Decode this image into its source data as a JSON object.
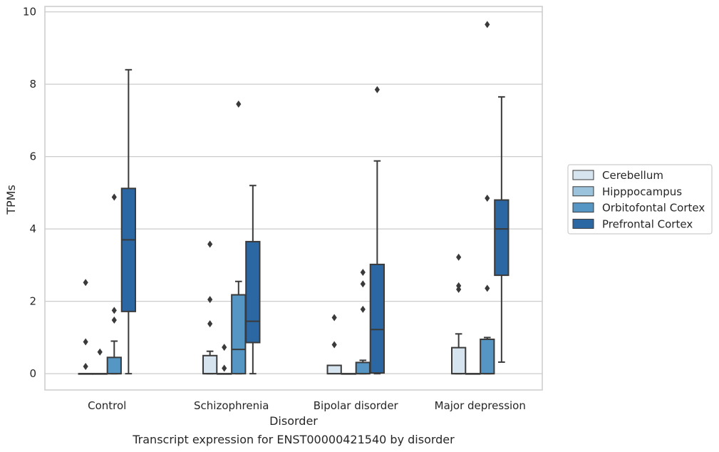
{
  "chart_data": {
    "type": "box",
    "caption": "Transcript expression for ENST00000421540 by disorder",
    "xlabel": "Disorder",
    "ylabel": "TPMs",
    "ylim": [
      -0.45,
      10.15
    ],
    "yticks": [
      0,
      2,
      4,
      6,
      8,
      10
    ],
    "grid": "horizontal",
    "legend_position": "right",
    "categories": [
      "Control",
      "Schizophrenia",
      "Bipolar disorder",
      "Major depression"
    ],
    "series": [
      {
        "name": "Cerebellum",
        "color": "#d6e4f0",
        "boxes": [
          {
            "q1": 0,
            "median": 0,
            "q3": 0,
            "whisker_low": 0,
            "whisker_high": 0,
            "outliers": [
              0.2,
              0.88,
              2.52
            ]
          },
          {
            "q1": 0,
            "median": 0,
            "q3": 0.5,
            "whisker_low": 0,
            "whisker_high": 0.62,
            "outliers": [
              1.38,
              2.05,
              3.58
            ]
          },
          {
            "q1": 0,
            "median": 0,
            "q3": 0.23,
            "whisker_low": 0,
            "whisker_high": 0.23,
            "outliers": [
              0.8,
              1.55
            ]
          },
          {
            "q1": 0,
            "median": 0,
            "q3": 0.72,
            "whisker_low": 0,
            "whisker_high": 1.1,
            "outliers": [
              2.33,
              2.43,
              3.22
            ]
          }
        ]
      },
      {
        "name": "Hipppocampus",
        "color": "#9cc3dc",
        "boxes": [
          {
            "q1": 0,
            "median": 0,
            "q3": 0,
            "whisker_low": 0,
            "whisker_high": 0,
            "outliers": [
              0.6
            ]
          },
          {
            "q1": 0,
            "median": 0,
            "q3": 0,
            "whisker_low": 0,
            "whisker_high": 0,
            "outliers": [
              0.15,
              0.73
            ]
          },
          {
            "q1": 0,
            "median": 0,
            "q3": 0,
            "whisker_low": 0,
            "whisker_high": 0,
            "outliers": []
          },
          {
            "q1": 0,
            "median": 0,
            "q3": 0,
            "whisker_low": 0,
            "whisker_high": 0,
            "outliers": []
          }
        ]
      },
      {
        "name": "Orbitofontal Cortex",
        "color": "#5596c4",
        "boxes": [
          {
            "q1": 0,
            "median": 0,
            "q3": 0.45,
            "whisker_low": 0,
            "whisker_high": 0.9,
            "outliers": [
              1.48,
              1.75,
              4.88
            ]
          },
          {
            "q1": 0,
            "median": 0.67,
            "q3": 2.18,
            "whisker_low": 0,
            "whisker_high": 2.55,
            "outliers": [
              7.45
            ]
          },
          {
            "q1": 0,
            "median": 0,
            "q3": 0.31,
            "whisker_low": 0,
            "whisker_high": 0.37,
            "outliers": [
              1.78,
              2.48,
              2.8
            ]
          },
          {
            "q1": 0,
            "median": 0,
            "q3": 0.95,
            "whisker_low": 0,
            "whisker_high": 1.0,
            "outliers": [
              2.36,
              4.85,
              9.65
            ]
          }
        ]
      },
      {
        "name": "Prefrontal Cortex",
        "color": "#2b67a3",
        "boxes": [
          {
            "q1": 1.72,
            "median": 3.7,
            "q3": 5.12,
            "whisker_low": 0,
            "whisker_high": 8.4,
            "outliers": []
          },
          {
            "q1": 0.86,
            "median": 1.45,
            "q3": 3.65,
            "whisker_low": 0,
            "whisker_high": 5.2,
            "outliers": []
          },
          {
            "q1": 0.02,
            "median": 1.22,
            "q3": 3.02,
            "whisker_low": 0,
            "whisker_high": 5.88,
            "outliers": [
              7.85
            ]
          },
          {
            "q1": 2.72,
            "median": 4.0,
            "q3": 4.8,
            "whisker_low": 0.32,
            "whisker_high": 7.65,
            "outliers": []
          }
        ]
      }
    ]
  }
}
